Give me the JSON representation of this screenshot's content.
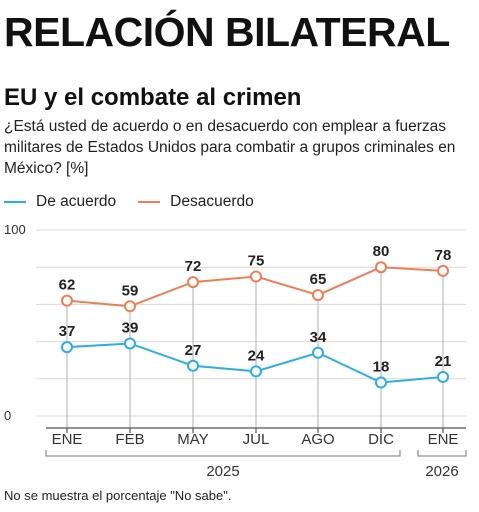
{
  "header": {
    "kicker": "RELACIÓN BILATERAL",
    "title": "EU y el combate al crimen",
    "subtitle": "¿Está usted de acuerdo o en desacuerdo con emplear a fuerzas militares de Estados Unidos para combatir a grupos criminales en México? [%]"
  },
  "footnote": "No se muestra el porcentaje \"No sabe\".",
  "colors": {
    "acuerdo": "#2aaee3",
    "desacuerdo": "#ef7e55",
    "grid": "#d9d9d9",
    "axis": "#555555"
  },
  "chart_data": {
    "type": "line",
    "categories": [
      "ENE",
      "FEB",
      "MAY",
      "JUL",
      "AGO",
      "DIC",
      "ENE"
    ],
    "series": [
      {
        "name": "De acuerdo",
        "values": [
          37,
          39,
          27,
          24,
          34,
          18,
          21
        ]
      },
      {
        "name": "Desacuerdo",
        "values": [
          62,
          59,
          72,
          75,
          65,
          80,
          78
        ]
      }
    ],
    "ylim": [
      0,
      100
    ],
    "yticks": [
      0,
      100
    ],
    "gridlines": [
      0,
      20,
      40,
      60,
      80,
      100
    ],
    "year_groups": [
      {
        "label": "2025",
        "start": 0,
        "end": 5
      },
      {
        "label": "2026",
        "start": 6,
        "end": 6
      }
    ],
    "legend_position": "top-left",
    "xlabel": "",
    "ylabel": ""
  }
}
